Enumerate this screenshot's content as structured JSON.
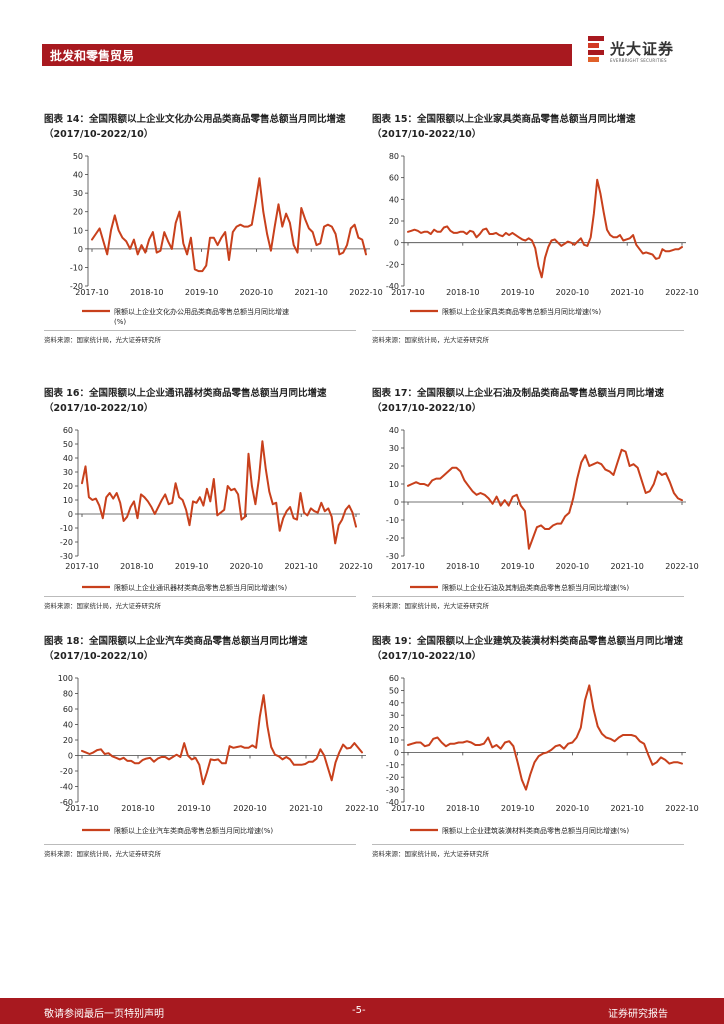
{
  "header": {
    "section": "批发和零售贸易",
    "logo_cn": "光大证券",
    "logo_en": "EVERBRIGHT SECURITIES"
  },
  "footer": {
    "left": "敬请参阅最后一页特别声明",
    "page": "-5-",
    "right": "证券研究报告"
  },
  "colors": {
    "brand": "#a8191f",
    "series": "#c8401c"
  },
  "chart_data": [
    {
      "id": "c14",
      "type": "line",
      "title": "图表 14：全国限额以上企业文化办公用品类商品零售总额当月同比增速（2017/10-2022/10）",
      "xticks": [
        "2017-10",
        "2018-10",
        "2019-10",
        "2020-10",
        "2021-10",
        "2022-10"
      ],
      "ylim": [
        -20,
        50
      ],
      "yticks": [
        -20,
        -10,
        0,
        10,
        20,
        30,
        40,
        50
      ],
      "legend": "限额以上企业文化办公用品类商品零售总额当月同比增速(%)",
      "source": "资料来源：国家统计局，光大证券研究所",
      "values": [
        5,
        8,
        11,
        4,
        -3,
        10,
        18,
        10,
        6,
        4,
        0,
        5,
        -3,
        2,
        -2,
        5,
        9,
        -2,
        -1,
        9,
        4,
        0,
        14,
        20,
        3,
        -3,
        6,
        -11,
        -12,
        -12,
        -9,
        6,
        6,
        2,
        6,
        9,
        -6,
        9,
        12,
        13,
        12,
        12,
        13,
        25,
        38,
        20,
        8,
        -1,
        12,
        24,
        12,
        19,
        14,
        2,
        -2,
        22,
        16,
        11,
        9,
        2,
        3,
        12,
        13,
        12,
        8,
        -3,
        -2,
        2,
        11,
        13,
        6,
        5,
        -3
      ]
    },
    {
      "id": "c15",
      "type": "line",
      "title": "图表 15：全国限额以上企业家具类商品零售总额当月同比增速（2017/10-2022/10）",
      "xticks": [
        "2017-10",
        "2018-10",
        "2019-10",
        "2020-10",
        "2021-10",
        "2022-10"
      ],
      "ylim": [
        -40,
        80
      ],
      "yticks": [
        -40,
        -20,
        0,
        20,
        40,
        60,
        80
      ],
      "legend": "限额以上企业家具类商品零售总额当月同比增速(%)",
      "source": "资料来源：国家统计局，光大证券研究所",
      "values": [
        10,
        11,
        12,
        11,
        9,
        10,
        10,
        8,
        12,
        10,
        10,
        14,
        15,
        11,
        9,
        9,
        10,
        10,
        8,
        11,
        10,
        5,
        8,
        12,
        13,
        8,
        8,
        9,
        7,
        6,
        9,
        7,
        9,
        7,
        5,
        3,
        2,
        4,
        2,
        -5,
        -22,
        -32,
        -14,
        -4,
        2,
        3,
        0,
        -3,
        -1,
        1,
        0,
        -2,
        1,
        4,
        -2,
        -3,
        5,
        27,
        58,
        45,
        28,
        12,
        7,
        5,
        5,
        7,
        2,
        3,
        4,
        7,
        -2,
        -6,
        -10,
        -9,
        -10,
        -11,
        -15,
        -14,
        -6,
        -8,
        -8,
        -7,
        -6,
        -6,
        -4
      ]
    },
    {
      "id": "c16",
      "type": "line",
      "title": "图表 16：全国限额以上企业通讯器材类商品零售总额当月同比增速（2017/10-2022/10）",
      "xticks": [
        "2017-10",
        "2018-10",
        "2019-10",
        "2020-10",
        "2021-10",
        "2022-10"
      ],
      "ylim": [
        -30,
        60
      ],
      "yticks": [
        -30,
        -20,
        -10,
        0,
        10,
        20,
        30,
        40,
        50,
        60
      ],
      "legend": "限额以上企业通讯器材类商品零售总额当月同比增速(%)",
      "source": "资料来源：国家统计局，光大证券研究所",
      "values": [
        22,
        34,
        12,
        10,
        11,
        6,
        -3,
        12,
        15,
        11,
        15,
        8,
        -5,
        -2,
        5,
        9,
        -3,
        14,
        12,
        9,
        5,
        0,
        5,
        10,
        14,
        7,
        8,
        22,
        12,
        10,
        3,
        -8,
        9,
        8,
        12,
        6,
        18,
        9,
        25,
        -1,
        1,
        3,
        20,
        17,
        18,
        14,
        -4,
        -2,
        43,
        20,
        7,
        25,
        52,
        32,
        16,
        7,
        8,
        -12,
        -3,
        2,
        5,
        -3,
        -4,
        15,
        1,
        -1,
        4,
        2,
        1,
        8,
        2,
        4,
        -2,
        -21,
        -8,
        -4,
        3,
        6,
        1,
        -9
      ]
    },
    {
      "id": "c17",
      "type": "line",
      "title": "图表 17：全国限额以上企业石油及制品类商品零售总额当月同比增速（2017/10-2022/10）",
      "xticks": [
        "2017-10",
        "2018-10",
        "2019-10",
        "2020-10",
        "2021-10",
        "2022-10"
      ],
      "ylim": [
        -30,
        40
      ],
      "yticks": [
        -30,
        -20,
        -10,
        0,
        10,
        20,
        30,
        40
      ],
      "legend": "限额以上企业石油及其制品类商品零售总额当月同比增速(%)",
      "source": "资料来源：国家统计局，光大证券研究所",
      "values": [
        9,
        10,
        11,
        10,
        10,
        9,
        12,
        13,
        13,
        15,
        17,
        19,
        19,
        17,
        12,
        9,
        6,
        4,
        5,
        4,
        2,
        -1,
        3,
        -2,
        1,
        -2,
        3,
        4,
        -2,
        -5,
        -26,
        -20,
        -14,
        -13,
        -15,
        -15,
        -13,
        -12,
        -12,
        -8,
        -6,
        2,
        13,
        22,
        26,
        20,
        21,
        22,
        21,
        18,
        17,
        15,
        22,
        29,
        28,
        20,
        21,
        19,
        12,
        5,
        6,
        10,
        17,
        15,
        16,
        11,
        5,
        2,
        1
      ]
    },
    {
      "id": "c18",
      "type": "line",
      "title": "图表 18：全国限额以上企业汽车类商品零售总额当月同比增速（2017/10-2022/10）",
      "xticks": [
        "2017-10",
        "2018-10",
        "2019-10",
        "2020-10",
        "2021-10",
        "2022-10"
      ],
      "ylim": [
        -60,
        100
      ],
      "yticks": [
        -60,
        -40,
        -20,
        0,
        20,
        40,
        60,
        80,
        100
      ],
      "legend": "限额以上企业汽车类商品零售总额当月同比增速(%)",
      "source": "资料来源：国家统计局，光大证券研究所",
      "values": [
        6,
        4,
        2,
        4,
        7,
        8,
        2,
        3,
        -1,
        -3,
        -5,
        -3,
        -7,
        -7,
        -10,
        -10,
        -6,
        -4,
        -3,
        -8,
        -4,
        -2,
        -2,
        -5,
        -2,
        1,
        -2,
        16,
        0,
        -5,
        -3,
        -12,
        -37,
        -22,
        -5,
        -6,
        -5,
        -10,
        -10,
        12,
        10,
        11,
        12,
        10,
        10,
        13,
        10,
        50,
        78,
        38,
        11,
        1,
        -1,
        -5,
        -2,
        -5,
        -12,
        -12,
        -12,
        -11,
        -8,
        -8,
        -4,
        8,
        0,
        -16,
        -32,
        -9,
        4,
        14,
        9,
        10,
        16,
        10,
        4
      ]
    },
    {
      "id": "c19",
      "type": "line",
      "title": "图表 19：全国限额以上企业建筑及装潢材料类商品零售总额当月同比增速（2017/10-2022/10）",
      "xticks": [
        "2017-10",
        "2018-10",
        "2019-10",
        "2020-10",
        "2021-10",
        "2022-10"
      ],
      "ylim": [
        -40,
        60
      ],
      "yticks": [
        -40,
        -30,
        -20,
        -10,
        0,
        10,
        20,
        30,
        40,
        50,
        60
      ],
      "legend": "限额以上企业建筑装潢材料类商品零售总额当月同比增速(%)",
      "source": "资料来源：国家统计局，光大证券研究所",
      "values": [
        6,
        7,
        8,
        8,
        5,
        6,
        11,
        12,
        8,
        5,
        7,
        7,
        8,
        8,
        9,
        8,
        6,
        6,
        7,
        12,
        4,
        6,
        3,
        8,
        9,
        5,
        -8,
        -22,
        -30,
        -18,
        -8,
        -3,
        -1,
        0,
        2,
        5,
        6,
        3,
        7,
        8,
        12,
        20,
        42,
        54,
        35,
        21,
        15,
        12,
        11,
        9,
        12,
        14,
        14,
        14,
        13,
        9,
        7,
        -2,
        -10,
        -8,
        -4,
        -6,
        -9,
        -8,
        -8,
        -9
      ]
    }
  ]
}
